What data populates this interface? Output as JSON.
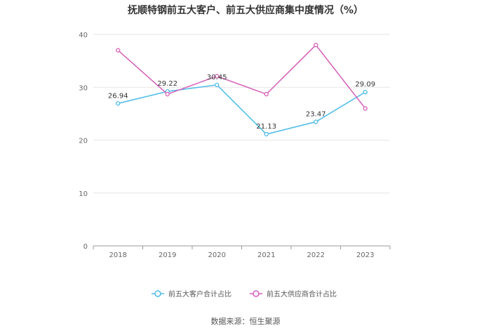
{
  "chart_data": {
    "type": "line",
    "title": "抚顺特钢前五大客户、前五大供应商集中度情况（%）",
    "categories": [
      "2018",
      "2019",
      "2020",
      "2021",
      "2022",
      "2023"
    ],
    "ylim": [
      0,
      40
    ],
    "yticks": [
      0,
      10,
      20,
      30,
      40
    ],
    "grid": true,
    "legend_position": "bottom-center",
    "series": [
      {
        "name": "前五大客户合计占比",
        "color": "#4dbbe8",
        "values": [
          26.94,
          29.22,
          30.45,
          21.13,
          23.47,
          29.09
        ],
        "labels": [
          "26.94",
          "29.22",
          "30.45",
          "21.13",
          "23.47",
          "29.09"
        ]
      },
      {
        "name": "前五大供应商合计占比",
        "color": "#d65fb9",
        "values": [
          37.0,
          28.7,
          32.1,
          28.7,
          38.0,
          26.0
        ],
        "labels": []
      }
    ]
  },
  "footer": {
    "source": "数据来源：恒生聚源"
  }
}
